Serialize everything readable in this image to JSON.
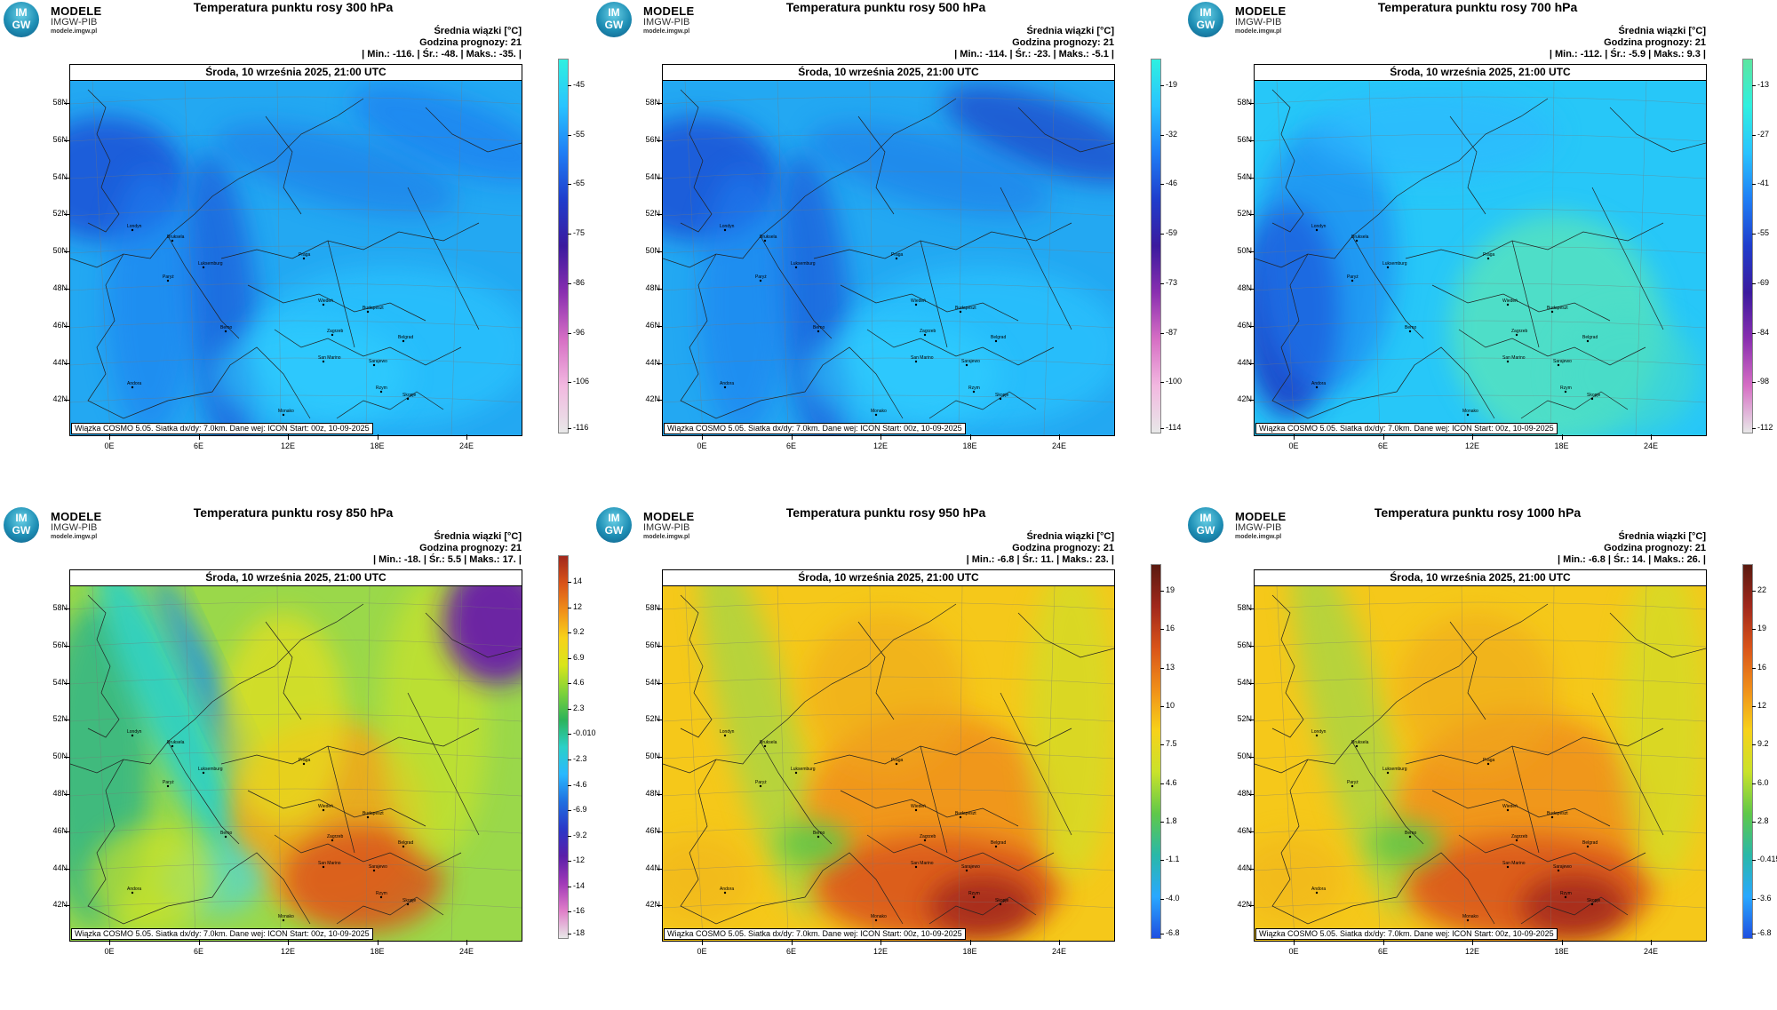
{
  "logo": {
    "badge_top": "IM",
    "badge_bottom": "GW",
    "line1": "MODELE",
    "line2": "IMGW-PIB",
    "line3": "modele.imgw.pl"
  },
  "common": {
    "date": "Środa, 10 września 2025, 21:00 UTC",
    "footer": "Wiązka COSMO 5.05. Siatka dx/dy: 7.0km. Dane wej: ICON Start: 00z, 10-09-2025",
    "lat_labels": [
      "58N",
      "56N",
      "54N",
      "52N",
      "50N",
      "48N",
      "46N",
      "44N",
      "42N"
    ],
    "lon_labels": [
      "0E",
      "6E",
      "12E",
      "18E",
      "24E"
    ],
    "cities": [
      "Londyn",
      "Bruksela",
      "Paryż",
      "Luksemburg",
      "Praga",
      "Wiedeń",
      "Budapeszt",
      "Berno",
      "Zagrzeb",
      "Belgrad",
      "San Marino",
      "Sarajewo",
      "Andora",
      "Monako",
      "Rzym",
      "Skopje"
    ]
  },
  "panels": [
    {
      "title": "Temperatura punktu rosy 300 hPa",
      "mean_label": "Średnia wiązki [°C]",
      "forecast_hour": "Godzina prognozy: 21",
      "minmax": "| Min.:   -116. | Śr.:   -48. | Maks.:   -35. |",
      "colorbar": [
        "-45",
        "-55",
        "-65",
        "-75",
        "-86",
        "-96",
        "-106",
        "-116"
      ],
      "scheme": "cold",
      "colorbar_colors": [
        "#2ff0e0",
        "#29c3ff",
        "#1f7ef5",
        "#1f3dcc",
        "#3b1a9e",
        "#8a2fb0",
        "#d66fc4",
        "#f2b8e0",
        "#e8e8e8"
      ]
    },
    {
      "title": "Temperatura punktu rosy 500 hPa",
      "mean_label": "Średnia wiązki [°C]",
      "forecast_hour": "Godzina prognozy: 21",
      "minmax": "| Min.:   -114. | Śr.:   -23. | Maks.:   -5.1 |",
      "colorbar": [
        "-19",
        "-32",
        "-46",
        "-59",
        "-73",
        "-87",
        "-100",
        "-114"
      ],
      "scheme": "cold",
      "colorbar_colors": [
        "#2ff0e0",
        "#29c3ff",
        "#1f7ef5",
        "#1f3dcc",
        "#3b1a9e",
        "#8a2fb0",
        "#d66fc4",
        "#f2b8e0",
        "#e8e8e8"
      ]
    },
    {
      "title": "Temperatura punktu rosy 700 hPa",
      "mean_label": "Średnia wiązki [°C]",
      "forecast_hour": "Godzina prognozy: 21",
      "minmax": "| Min.:   -112. | Śr.:   -5.9 | Maks.:   9.3 |",
      "colorbar": [
        "-13",
        "-27",
        "-41",
        "-55",
        "-69",
        "-84",
        "-98",
        "-112"
      ],
      "scheme": "cold700",
      "colorbar_colors": [
        "#5ce6a0",
        "#2ff0e0",
        "#29c3ff",
        "#1f7ef5",
        "#1f3dcc",
        "#3b1a9e",
        "#8a2fb0",
        "#d66fc4",
        "#e8e8e8"
      ]
    },
    {
      "title": "Temperatura punktu rosy 850 hPa",
      "mean_label": "Średnia wiązki [°C]",
      "forecast_hour": "Godzina prognozy: 21",
      "minmax": "| Min.:   -18. | Śr.:   5.5 | Maks.:   17. |",
      "colorbar": [
        "14",
        "12",
        "9.2",
        "6.9",
        "4.6",
        "2.3",
        "-0.010",
        "-2.3",
        "-4.6",
        "-6.9",
        "-9.2",
        "-12",
        "-14",
        "-16",
        "-18"
      ],
      "scheme": "mixed",
      "colorbar_colors": [
        "#a1281c",
        "#d9541a",
        "#f08f1a",
        "#f7d21a",
        "#d9e51a",
        "#7fd23a",
        "#2cb35a",
        "#2ad0c8",
        "#29b8ff",
        "#1f6fe0",
        "#2a38c8",
        "#5a1fa8",
        "#a13ab8",
        "#e07ec8",
        "#e8e8e8"
      ]
    },
    {
      "title": "Temperatura punktu rosy 950 hPa",
      "mean_label": "Średnia wiązki [°C]",
      "forecast_hour": "Godzina prognozy: 21",
      "minmax": "| Min.:   -6.8 | Śr.:   11. | Maks.:   23. |",
      "colorbar": [
        "19",
        "16",
        "13",
        "10",
        "7.5",
        "4.6",
        "1.8",
        "-1.1",
        "-4.0",
        "-6.8"
      ],
      "scheme": "warm",
      "colorbar_colors": [
        "#5a1a10",
        "#a1281c",
        "#d9541a",
        "#f08f1a",
        "#f7d21a",
        "#c9e22a",
        "#5fc84a",
        "#2ab8a8",
        "#29a8ff",
        "#1f4fe0"
      ]
    },
    {
      "title": "Temperatura punktu rosy 1000 hPa",
      "mean_label": "Średnia wiązki [°C]",
      "forecast_hour": "Godzina prognozy: 21",
      "minmax": "| Min.:   -6.8 | Śr.:   14. | Maks.:   26. |",
      "colorbar": [
        "22",
        "19",
        "16",
        "12",
        "9.2",
        "6.0",
        "2.8",
        "-0.415",
        "-3.6",
        "-6.8"
      ],
      "scheme": "warm",
      "colorbar_colors": [
        "#5a1a10",
        "#a1281c",
        "#d9541a",
        "#f08f1a",
        "#f7d21a",
        "#c9e22a",
        "#5fc84a",
        "#2ab8a8",
        "#29a8ff",
        "#1f4fe0"
      ]
    }
  ]
}
